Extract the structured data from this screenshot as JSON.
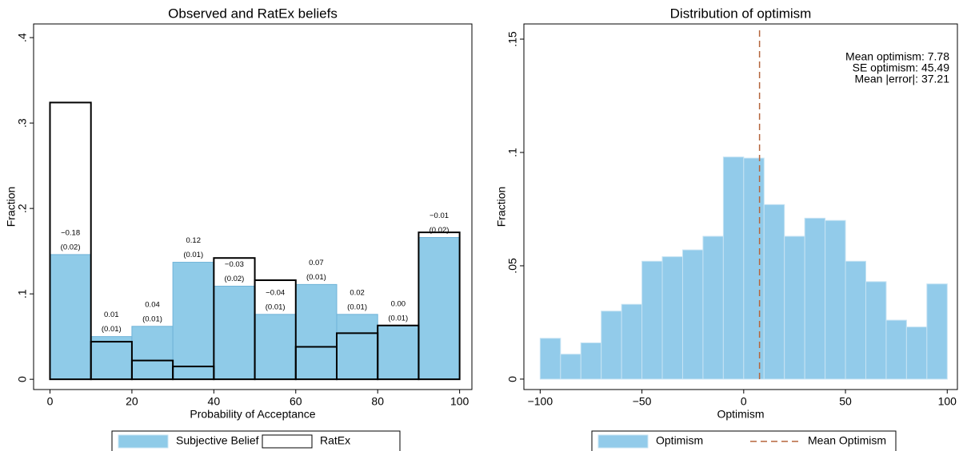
{
  "chart_data": [
    {
      "type": "histogram",
      "title": "Observed and RatEx beliefs",
      "xlabel": "Probability of Acceptance",
      "ylabel": "Fraction",
      "bins": [
        0,
        10,
        20,
        30,
        40,
        50,
        60,
        70,
        80,
        90,
        100
      ],
      "series": [
        {
          "name": "Subjective Belief",
          "color": "#8fcbe8",
          "style": "filled",
          "values": [
            0.146,
            0.05,
            0.062,
            0.137,
            0.109,
            0.076,
            0.111,
            0.076,
            0.063,
            0.166
          ]
        },
        {
          "name": "RatEx",
          "color": "#000000",
          "style": "outline",
          "values": [
            0.324,
            0.044,
            0.022,
            0.015,
            0.142,
            0.116,
            0.038,
            0.054,
            0.063,
            0.172
          ]
        }
      ],
      "diff_labels": [
        "−0.18",
        "0.01",
        "0.04",
        "0.12",
        "−0.03",
        "−0.04",
        "0.07",
        "0.02",
        "0.00",
        "−0.01"
      ],
      "se_labels": [
        "(0.02)",
        "(0.01)",
        "(0.01)",
        "(0.01)",
        "(0.02)",
        "(0.01)",
        "(0.01)",
        "(0.01)",
        "(0.01)",
        "(0.02)"
      ],
      "xlim": [
        -4,
        103
      ],
      "ylim": [
        -0.012,
        0.416
      ],
      "xticks": [
        0,
        20,
        40,
        60,
        80,
        100
      ],
      "yticks": [
        0,
        {
          "value": 0.1,
          "label": ".1"
        },
        {
          "value": 0.2,
          "label": ".2"
        },
        {
          "value": 0.3,
          "label": ".3"
        },
        {
          "value": 0.4,
          "label": ".4"
        }
      ]
    },
    {
      "type": "histogram",
      "title": "Distribution of optimism",
      "xlabel": "Optimism",
      "ylabel": "Fraction",
      "bins": [
        -100,
        -90,
        -80,
        -70,
        -60,
        -50,
        -40,
        -30,
        -20,
        -10,
        0,
        10,
        20,
        30,
        40,
        50,
        60,
        70,
        80,
        90,
        100
      ],
      "series": [
        {
          "name": "Optimism",
          "color": "#92cbea",
          "style": "filled",
          "values": [
            0.018,
            0.011,
            0.016,
            0.03,
            0.033,
            0.052,
            0.054,
            0.057,
            0.063,
            0.098,
            0.0975,
            0.077,
            0.063,
            0.071,
            0.07,
            0.052,
            0.043,
            0.026,
            0.023,
            0.042
          ]
        },
        {
          "name": "Mean Optimism",
          "color": "#b5653c",
          "style": "vline",
          "value": 7.78
        }
      ],
      "annotations": [
        "Mean optimism: 7.78",
        "SE optimism: 45.49",
        "Mean |error|: 37.21"
      ],
      "xlim": [
        -108,
        105
      ],
      "ylim": [
        -0.0046,
        0.1567
      ],
      "xticks": [
        {
          "value": -100,
          "label": "−100"
        },
        {
          "value": -50,
          "label": "−50"
        },
        0,
        50,
        100
      ],
      "yticks": [
        0,
        {
          "value": 0.05,
          "label": ".05"
        },
        {
          "value": 0.1,
          "label": ".1"
        },
        {
          "value": 0.15,
          "label": ".15"
        }
      ]
    }
  ]
}
